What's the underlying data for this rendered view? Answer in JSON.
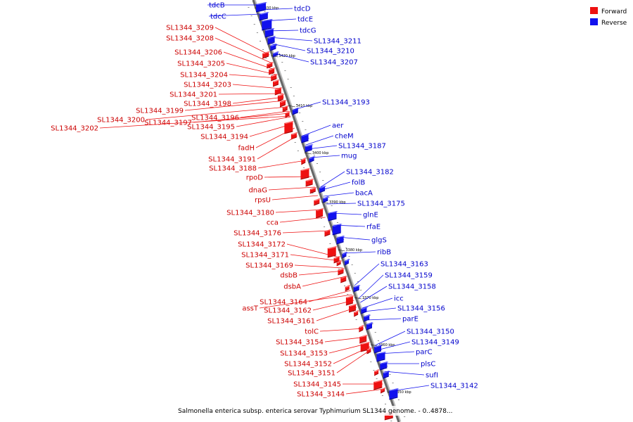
{
  "legend": {
    "forward_label": "Forward",
    "reverse_label": "Reverse",
    "forward_color": "#ee1111",
    "reverse_color": "#1111ee"
  },
  "caption": "Salmonella enterica subsp. enterica serovar Typhimurium SL1344 genome. - 0..4878...",
  "ticks": [
    "3430 kbp",
    "3420 kbp",
    "3410 kbp",
    "3400 kbp",
    "3390 kbp",
    "3380 kbp",
    "3370 kbp",
    "3360 kbp",
    "3350 kbp"
  ],
  "reverse_genes": [
    "tdcB",
    "tdcC",
    "tdcD",
    "tdcE",
    "tdcG",
    "SL1344_3211",
    "SL1344_3210",
    "SL1344_3207",
    "SL1344_3193",
    "aer",
    "cheM",
    "SL1344_3187",
    "mug",
    "SL1344_3182",
    "folB",
    "bacA",
    "SL1344_3175",
    "glnE",
    "rfaE",
    "glgS",
    "ribB",
    "SL1344_3163",
    "SL1344_3159",
    "SL1344_3158",
    "icc",
    "SL1344_3156",
    "parE",
    "SL1344_3150",
    "SL1344_3149",
    "parC",
    "plsC",
    "sufI",
    "SL1344_3142"
  ],
  "forward_genes": [
    "SL1344_3209",
    "SL1344_3208",
    "SL1344_3206",
    "SL1344_3205",
    "SL1344_3204",
    "SL1344_3203",
    "SL1344_3201",
    "SL1344_3198",
    "SL1344_3199",
    "SL1344_3200",
    "SL1344_3196",
    "SL1344_3197",
    "SL1344_3202",
    "SL1344_3195",
    "SL1344_3194",
    "fadH",
    "SL1344_3191",
    "SL1344_3188",
    "rpoD",
    "dnaG",
    "rpsU",
    "SL1344_3180",
    "cca",
    "SL1344_3176",
    "SL1344_3172",
    "SL1344_3171",
    "SL1344_3169",
    "dsbB",
    "dsbA",
    "SL1344_3164",
    "assT",
    "SL1344_3162",
    "SL1344_3161",
    "tolC",
    "SL1344_3154",
    "SL1344_3153",
    "SL1344_3152",
    "SL1344_3151",
    "SL1344_3145",
    "SL1344_3144"
  ]
}
